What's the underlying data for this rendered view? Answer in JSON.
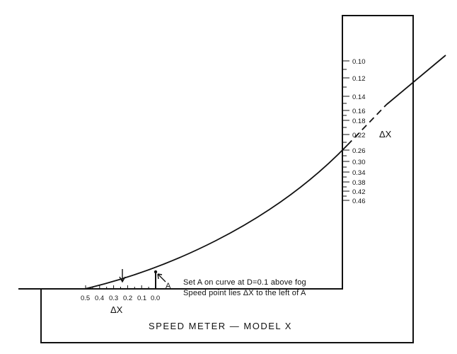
{
  "device": {
    "name": "SPEED METER — MODEL X",
    "point_label": "A",
    "instructions": [
      "Set A on curve at D=0.1 above fog",
      "Speed point lies ΔX to the left of A"
    ]
  },
  "vertical_scale": {
    "label": "ΔX",
    "ticks": [
      "0.10",
      "0.12",
      "0.14",
      "0.16",
      "0.18",
      "0.22",
      "0.26",
      "0.30",
      "0.34",
      "0.38",
      "0.42",
      "0.46"
    ]
  },
  "horizontal_scale": {
    "label": "ΔX",
    "ticks": [
      "0.5",
      "0.4",
      "0.3",
      "0.2",
      "0.1",
      "0.0"
    ]
  },
  "colors": {
    "ink": "#111111",
    "paper": "#ffffff"
  }
}
